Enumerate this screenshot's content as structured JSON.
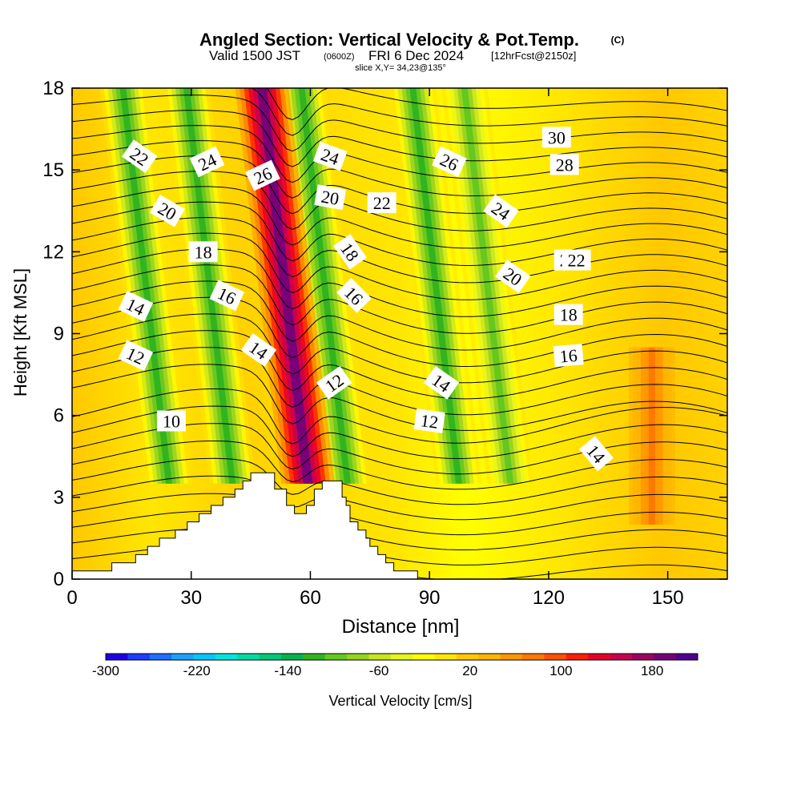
{
  "header": {
    "title": "Angled Section: Vertical Velocity & Pot.Temp.",
    "copyright": "(C)",
    "valid_prefix": "Valid 1500 JST",
    "valid_z": "(0600Z)",
    "valid_date": "FRI 6 Dec 2024",
    "valid_run": "[12hrFcst@2150z]",
    "slice": "slice X,Y= 34,23@135°"
  },
  "chart_data": {
    "type": "contour",
    "xlabel": "Distance [nm]",
    "ylabel": "Height [Kft MSL]",
    "xlim": [
      0,
      165
    ],
    "ylim": [
      0,
      18
    ],
    "xticks": [
      0,
      30,
      60,
      90,
      120,
      150
    ],
    "yticks": [
      0,
      3,
      6,
      9,
      12,
      15,
      18
    ],
    "colorbar": {
      "label": "Vertical Velocity [cm/s]",
      "tick_labels": [
        "-300",
        "-220",
        "-140",
        "-60",
        "20",
        "100",
        "180"
      ],
      "colors": [
        "#1e00e6",
        "#1e3cff",
        "#1e6eff",
        "#1ea0ff",
        "#00c8ff",
        "#00e6dc",
        "#00dca0",
        "#00c878",
        "#00b450",
        "#32b41e",
        "#64c81e",
        "#96d21e",
        "#c8e61e",
        "#e6f51e",
        "#ffff00",
        "#ffe600",
        "#ffc800",
        "#ffb400",
        "#ff9600",
        "#ff7800",
        "#ff5000",
        "#ff1e00",
        "#e60028",
        "#c80050",
        "#a00064",
        "#780078",
        "#50008c"
      ]
    },
    "pot_temp_contour_labels": [
      "10",
      "12",
      "14",
      "16",
      "18",
      "20",
      "22",
      "24",
      "26",
      "28",
      "30"
    ],
    "vertical_velocity_features": [
      {
        "kind": "updraft",
        "x_center": 55,
        "value_max": 190
      },
      {
        "kind": "downdraft",
        "x_center": 20,
        "value_min": -120
      },
      {
        "kind": "downdraft",
        "x_center": 36,
        "value_min": -120
      },
      {
        "kind": "downdraft",
        "x_center": 65,
        "value_min": -120
      },
      {
        "kind": "downdraft",
        "x_center": 93,
        "value_min": -120
      },
      {
        "kind": "downdraft",
        "x_center": 106,
        "value_min": -100
      },
      {
        "kind": "updraft",
        "x_center": 146,
        "value_max": 70
      }
    ],
    "terrain_kft": [
      [
        0,
        0.3
      ],
      [
        10,
        0.3
      ],
      [
        10,
        0.6
      ],
      [
        16,
        0.6
      ],
      [
        16,
        0.9
      ],
      [
        19,
        0.9
      ],
      [
        19,
        1.2
      ],
      [
        22,
        1.2
      ],
      [
        22,
        1.5
      ],
      [
        26,
        1.5
      ],
      [
        26,
        1.8
      ],
      [
        29,
        1.8
      ],
      [
        29,
        2.1
      ],
      [
        32,
        2.1
      ],
      [
        32,
        2.4
      ],
      [
        35,
        2.4
      ],
      [
        35,
        2.7
      ],
      [
        38,
        2.7
      ],
      [
        38,
        3.0
      ],
      [
        41,
        3.0
      ],
      [
        41,
        3.3
      ],
      [
        43,
        3.3
      ],
      [
        43,
        3.6
      ],
      [
        45,
        3.6
      ],
      [
        45,
        3.9
      ],
      [
        51,
        3.9
      ],
      [
        51,
        3.3
      ],
      [
        54,
        3.3
      ],
      [
        54,
        2.7
      ],
      [
        56,
        2.7
      ],
      [
        56,
        2.4
      ],
      [
        59,
        2.4
      ],
      [
        59,
        2.7
      ],
      [
        61,
        2.7
      ],
      [
        61,
        3.3
      ],
      [
        63,
        3.3
      ],
      [
        63,
        3.6
      ],
      [
        68,
        3.6
      ],
      [
        68,
        3.0
      ],
      [
        69,
        3.0
      ],
      [
        69,
        2.7
      ],
      [
        70,
        2.7
      ],
      [
        70,
        2.1
      ],
      [
        72,
        2.1
      ],
      [
        72,
        1.8
      ],
      [
        74,
        1.8
      ],
      [
        74,
        1.5
      ],
      [
        75,
        1.5
      ],
      [
        75,
        1.2
      ],
      [
        77,
        1.2
      ],
      [
        77,
        0.9
      ],
      [
        79,
        0.9
      ],
      [
        79,
        0.6
      ],
      [
        81,
        0.6
      ],
      [
        81,
        0.3
      ],
      [
        87,
        0.3
      ],
      [
        87,
        0
      ],
      [
        165,
        0
      ]
    ]
  }
}
